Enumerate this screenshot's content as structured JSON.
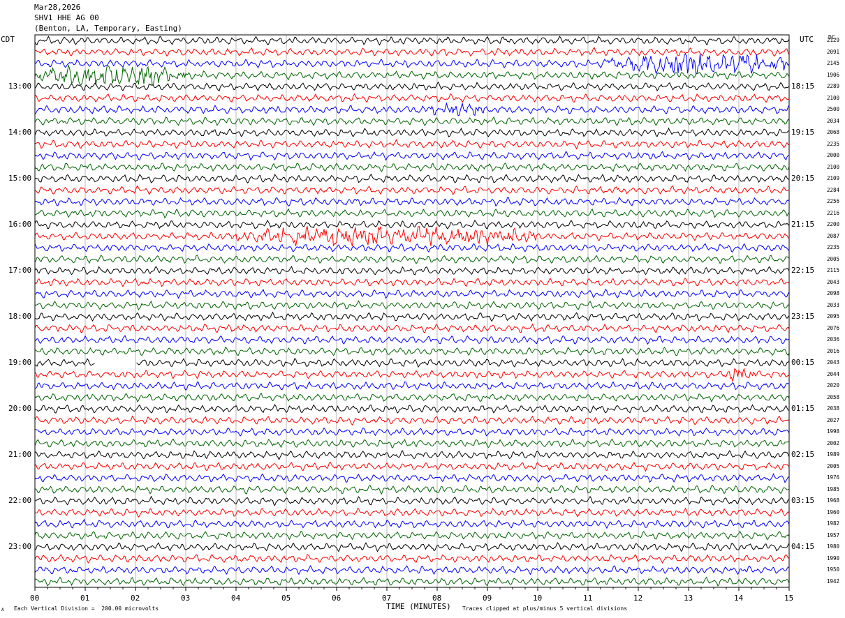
{
  "header": {
    "date": "Mar28,2026",
    "station": "SHV1 HHE AG 00",
    "location": "(Benton, LA, Temporary, Easting)"
  },
  "corner_labels": {
    "left": "CDT",
    "right": "UTC",
    "dc": "DC"
  },
  "footer": {
    "scale": "Each Vertical Division =  200.00 microvolts",
    "clip": "Traces clipped at plus/minus 5 vertical divisions",
    "mark": "A"
  },
  "chart_data": {
    "type": "line",
    "title": "",
    "xlabel": "TIME (MINUTES)",
    "ylabel": "",
    "xlim": [
      0,
      15
    ],
    "x_ticks": [
      "00",
      "01",
      "02",
      "03",
      "04",
      "05",
      "06",
      "07",
      "08",
      "09",
      "10",
      "11",
      "12",
      "13",
      "14",
      "15"
    ],
    "trace_colors": [
      "#000000",
      "#ff0000",
      "#0000ff",
      "#006400"
    ],
    "rows": 48,
    "minutes_per_row": 15,
    "left_time_labels": [
      "13:00",
      "14:00",
      "15:00",
      "16:00",
      "17:00",
      "18:00",
      "19:00",
      "20:00",
      "21:00",
      "22:00",
      "23:00"
    ],
    "right_time_labels": [
      "18:15",
      "19:15",
      "20:15",
      "21:15",
      "22:15",
      "23:15",
      "00:15",
      "01:15",
      "02:15",
      "03:15",
      "04:15"
    ],
    "dc_offsets": [
      "2129",
      "2091",
      "2145",
      "1906",
      "2289",
      "2100",
      "2500",
      "2034",
      "2068",
      "2235",
      "2000",
      "2100",
      "2109",
      "2284",
      "2256",
      "2216",
      "2200",
      "2087",
      "2235",
      "2005",
      "2115",
      "2043",
      "2098",
      "2033",
      "2095",
      "2076",
      "2036",
      "2016",
      "2043",
      "2044",
      "2020",
      "2058",
      "2038",
      "2027",
      "1998",
      "2002",
      "1989",
      "2005",
      "1976",
      "1985",
      "1968",
      "1960",
      "1982",
      "1957",
      "1980",
      "1990",
      "1950",
      "1942"
    ],
    "events": [
      {
        "row": 2,
        "start_min": 11.3,
        "end_min": 15,
        "amp": 2.6
      },
      {
        "row": 3,
        "start_min": 0,
        "end_min": 3.0,
        "amp": 2.6
      },
      {
        "row": 6,
        "start_min": 7.8,
        "end_min": 9.0,
        "amp": 1.6
      },
      {
        "row": 17,
        "start_min": 4.0,
        "end_min": 10.0,
        "amp": 2.4
      },
      {
        "row": 29,
        "start_min": 13.7,
        "end_min": 14.3,
        "amp": 1.8
      }
    ],
    "gaps": [
      {
        "row": 28,
        "start_min": 1.2,
        "end_min": 2.0
      }
    ]
  }
}
